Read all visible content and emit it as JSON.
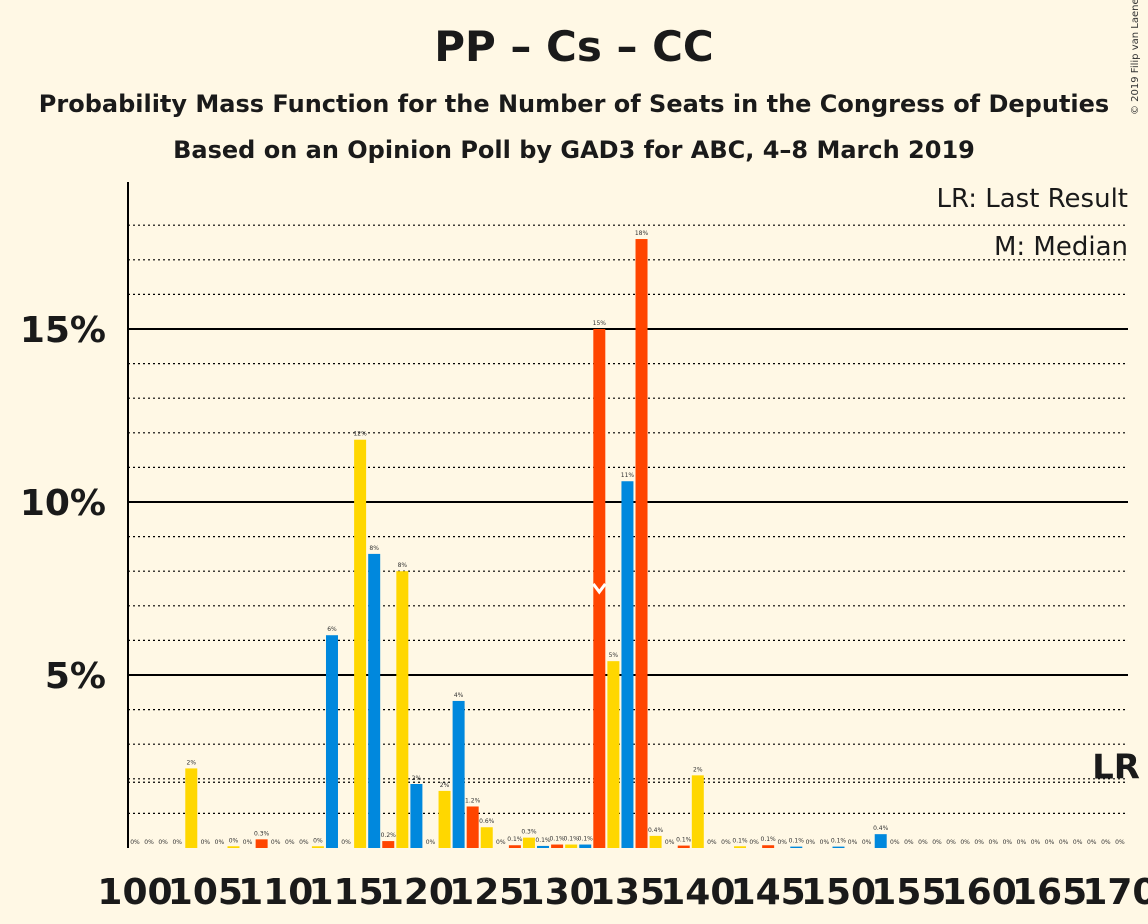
{
  "title": "PP – Cs – CC",
  "subtitle": "Probability Mass Function for the Number of Seats in the Congress of Deputies",
  "subtitle2": "Based on an Opinion Poll by GAD3 for ABC, 4–8 March 2019",
  "copyright": "© 2019 Filip van Laenen",
  "legend": {
    "last_result": "LR: Last Result",
    "median": "M: Median"
  },
  "lr_marker": "LR",
  "median_marker": "M",
  "colors": {
    "background": "#FFF8E5",
    "yellow": "#FFD700",
    "red": "#FF4500",
    "blue": "#0088DD",
    "text": "#1a1a1a"
  },
  "chart_data": {
    "type": "bar",
    "xlim": [
      100,
      170
    ],
    "ylim": [
      0,
      19
    ],
    "x_ticks": [
      100,
      105,
      110,
      115,
      120,
      125,
      130,
      135,
      140,
      145,
      150,
      155,
      160,
      165,
      170
    ],
    "y_ticks": [
      {
        "value": 5,
        "label": "5%"
      },
      {
        "value": 10,
        "label": "10%"
      },
      {
        "value": 15,
        "label": "15%"
      }
    ],
    "median_seat": 133,
    "last_result_value": 1.9,
    "bars": [
      {
        "x": 100,
        "v": 0,
        "c": "blue",
        "label": "0%"
      },
      {
        "x": 101,
        "v": 0,
        "c": "yellow",
        "label": "0%"
      },
      {
        "x": 102,
        "v": 0,
        "c": "red",
        "label": "0%"
      },
      {
        "x": 103,
        "v": 0,
        "c": "blue",
        "label": "0%"
      },
      {
        "x": 104,
        "v": 2.3,
        "c": "yellow",
        "label": "2%"
      },
      {
        "x": 105,
        "v": 0,
        "c": "red",
        "label": "0%"
      },
      {
        "x": 106,
        "v": 0,
        "c": "blue",
        "label": "0%"
      },
      {
        "x": 107,
        "v": 0.05,
        "c": "yellow",
        "label": "0%"
      },
      {
        "x": 108,
        "v": 0,
        "c": "red",
        "label": "0%"
      },
      {
        "x": 109,
        "v": 0.25,
        "c": "red",
        "label": "0.3%"
      },
      {
        "x": 110,
        "v": 0,
        "c": "yellow",
        "label": "0%"
      },
      {
        "x": 111,
        "v": 0,
        "c": "red",
        "label": "0%"
      },
      {
        "x": 112,
        "v": 0,
        "c": "blue",
        "label": "0%"
      },
      {
        "x": 113,
        "v": 0.05,
        "c": "yellow",
        "label": "0%"
      },
      {
        "x": 114,
        "v": 6.15,
        "c": "blue",
        "label": "6%"
      },
      {
        "x": 115,
        "v": 0,
        "c": "blue",
        "label": "0%"
      },
      {
        "x": 116,
        "v": 11.8,
        "c": "yellow",
        "label": "12%"
      },
      {
        "x": 117,
        "v": 8.5,
        "c": "blue",
        "label": "8%"
      },
      {
        "x": 118,
        "v": 0.2,
        "c": "red",
        "label": "0.2%"
      },
      {
        "x": 119,
        "v": 8.0,
        "c": "yellow",
        "label": "8%"
      },
      {
        "x": 120,
        "v": 1.85,
        "c": "blue",
        "label": "2%"
      },
      {
        "x": 121,
        "v": 0,
        "c": "red",
        "label": "0%"
      },
      {
        "x": 122,
        "v": 1.65,
        "c": "yellow",
        "label": "2%"
      },
      {
        "x": 123,
        "v": 4.25,
        "c": "blue",
        "label": "4%"
      },
      {
        "x": 124,
        "v": 1.2,
        "c": "red",
        "label": "1.2%"
      },
      {
        "x": 125,
        "v": 0.6,
        "c": "yellow",
        "label": "0.6%"
      },
      {
        "x": 126,
        "v": 0,
        "c": "blue",
        "label": "0%"
      },
      {
        "x": 127,
        "v": 0.08,
        "c": "red",
        "label": "0.1%"
      },
      {
        "x": 128,
        "v": 0.3,
        "c": "yellow",
        "label": "0.3%"
      },
      {
        "x": 129,
        "v": 0.06,
        "c": "blue",
        "label": "0.1%"
      },
      {
        "x": 130,
        "v": 0.1,
        "c": "red",
        "label": "0.1%"
      },
      {
        "x": 131,
        "v": 0.1,
        "c": "yellow",
        "label": "0.1%"
      },
      {
        "x": 132,
        "v": 0.1,
        "c": "blue",
        "label": "0.1%"
      },
      {
        "x": 133,
        "v": 15.0,
        "c": "red",
        "label": "15%"
      },
      {
        "x": 134,
        "v": 5.4,
        "c": "yellow",
        "label": "5%"
      },
      {
        "x": 135,
        "v": 10.6,
        "c": "blue",
        "label": "11%"
      },
      {
        "x": 136,
        "v": 17.6,
        "c": "red",
        "label": "18%"
      },
      {
        "x": 137,
        "v": 0.35,
        "c": "yellow",
        "label": "0.4%"
      },
      {
        "x": 138,
        "v": 0,
        "c": "blue",
        "label": "0%"
      },
      {
        "x": 139,
        "v": 0.07,
        "c": "red",
        "label": "0.1%"
      },
      {
        "x": 140,
        "v": 2.1,
        "c": "yellow",
        "label": "2%"
      },
      {
        "x": 141,
        "v": 0,
        "c": "blue",
        "label": "0%"
      },
      {
        "x": 142,
        "v": 0,
        "c": "red",
        "label": "0%"
      },
      {
        "x": 143,
        "v": 0.05,
        "c": "yellow",
        "label": "0.1%"
      },
      {
        "x": 144,
        "v": 0,
        "c": "blue",
        "label": "0%"
      },
      {
        "x": 145,
        "v": 0.08,
        "c": "red",
        "label": "0.1%"
      },
      {
        "x": 146,
        "v": 0,
        "c": "yellow",
        "label": "0%"
      },
      {
        "x": 147,
        "v": 0.04,
        "c": "blue",
        "label": "0.1%"
      },
      {
        "x": 148,
        "v": 0,
        "c": "red",
        "label": "0%"
      },
      {
        "x": 149,
        "v": 0,
        "c": "yellow",
        "label": "0%"
      },
      {
        "x": 150,
        "v": 0.04,
        "c": "blue",
        "label": "0.1%"
      },
      {
        "x": 151,
        "v": 0,
        "c": "red",
        "label": "0%"
      },
      {
        "x": 152,
        "v": 0,
        "c": "yellow",
        "label": "0%"
      },
      {
        "x": 153,
        "v": 0.4,
        "c": "blue",
        "label": "0.4%"
      },
      {
        "x": 154,
        "v": 0,
        "c": "red",
        "label": "0%"
      },
      {
        "x": 155,
        "v": 0,
        "c": "yellow",
        "label": "0%"
      },
      {
        "x": 156,
        "v": 0,
        "c": "blue",
        "label": "0%"
      },
      {
        "x": 157,
        "v": 0,
        "c": "red",
        "label": "0%"
      },
      {
        "x": 158,
        "v": 0,
        "c": "yellow",
        "label": "0%"
      },
      {
        "x": 159,
        "v": 0,
        "c": "blue",
        "label": "0%"
      },
      {
        "x": 160,
        "v": 0,
        "c": "red",
        "label": "0%"
      },
      {
        "x": 161,
        "v": 0,
        "c": "yellow",
        "label": "0%"
      },
      {
        "x": 162,
        "v": 0,
        "c": "blue",
        "label": "0%"
      },
      {
        "x": 163,
        "v": 0,
        "c": "red",
        "label": "0%"
      },
      {
        "x": 164,
        "v": 0,
        "c": "yellow",
        "label": "0%"
      },
      {
        "x": 165,
        "v": 0,
        "c": "blue",
        "label": "0%"
      },
      {
        "x": 166,
        "v": 0,
        "c": "red",
        "label": "0%"
      },
      {
        "x": 167,
        "v": 0,
        "c": "yellow",
        "label": "0%"
      },
      {
        "x": 168,
        "v": 0,
        "c": "blue",
        "label": "0%"
      },
      {
        "x": 169,
        "v": 0,
        "c": "red",
        "label": "0%"
      },
      {
        "x": 170,
        "v": 0,
        "c": "yellow",
        "label": "0%"
      }
    ]
  }
}
